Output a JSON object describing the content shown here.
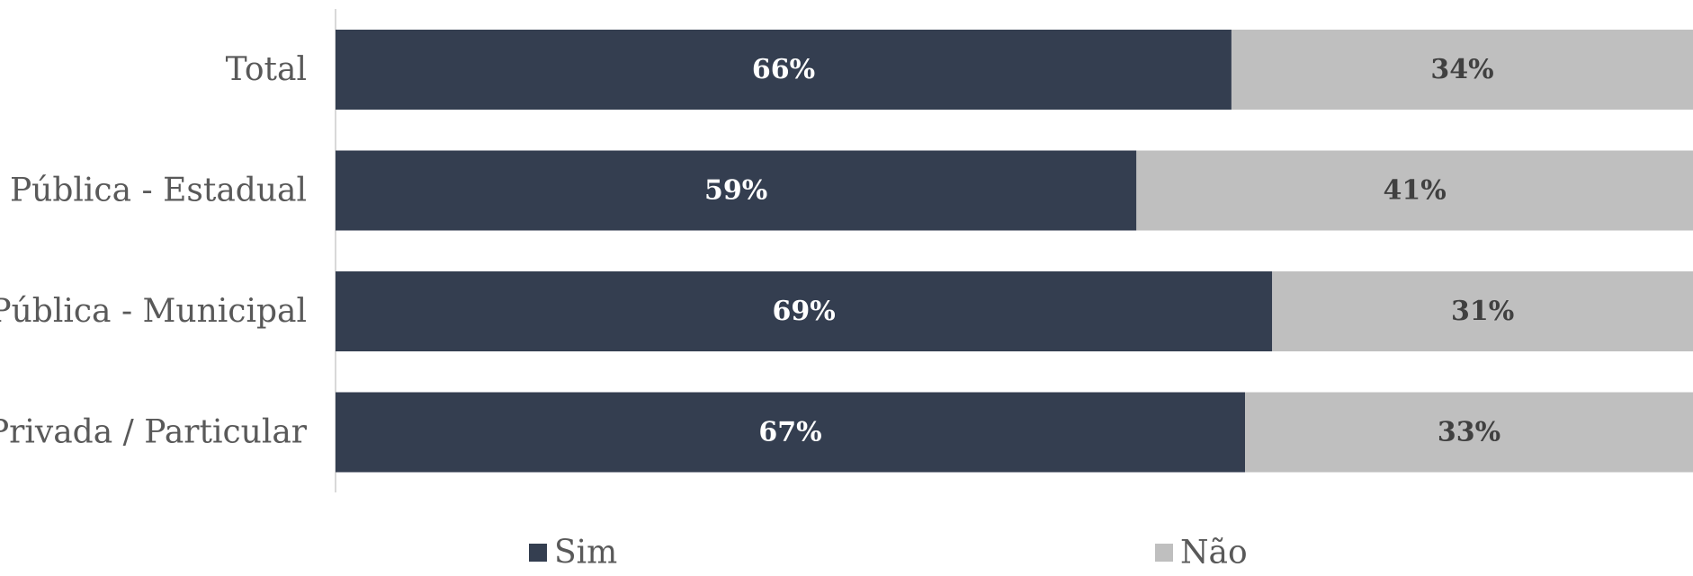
{
  "chart_data": {
    "type": "bar",
    "orientation": "horizontal",
    "stacked": true,
    "categories": [
      "Total",
      "Pública - Estadual",
      "Pública - Municipal",
      "Privada / Particular"
    ],
    "series": [
      {
        "name": "Sim",
        "values": [
          66,
          59,
          69,
          67
        ],
        "labels": [
          "66%",
          "59%",
          "69%",
          "67%"
        ],
        "color": "#343e50",
        "label_color": "#ffffff"
      },
      {
        "name": "Não",
        "values": [
          34,
          41,
          31,
          33
        ],
        "labels": [
          "34%",
          "41%",
          "31%",
          "33%"
        ],
        "color": "#bfbfbf",
        "label_color": "#404040"
      }
    ],
    "xlim": [
      0,
      100
    ],
    "grid": false,
    "legend_position": "bottom"
  }
}
